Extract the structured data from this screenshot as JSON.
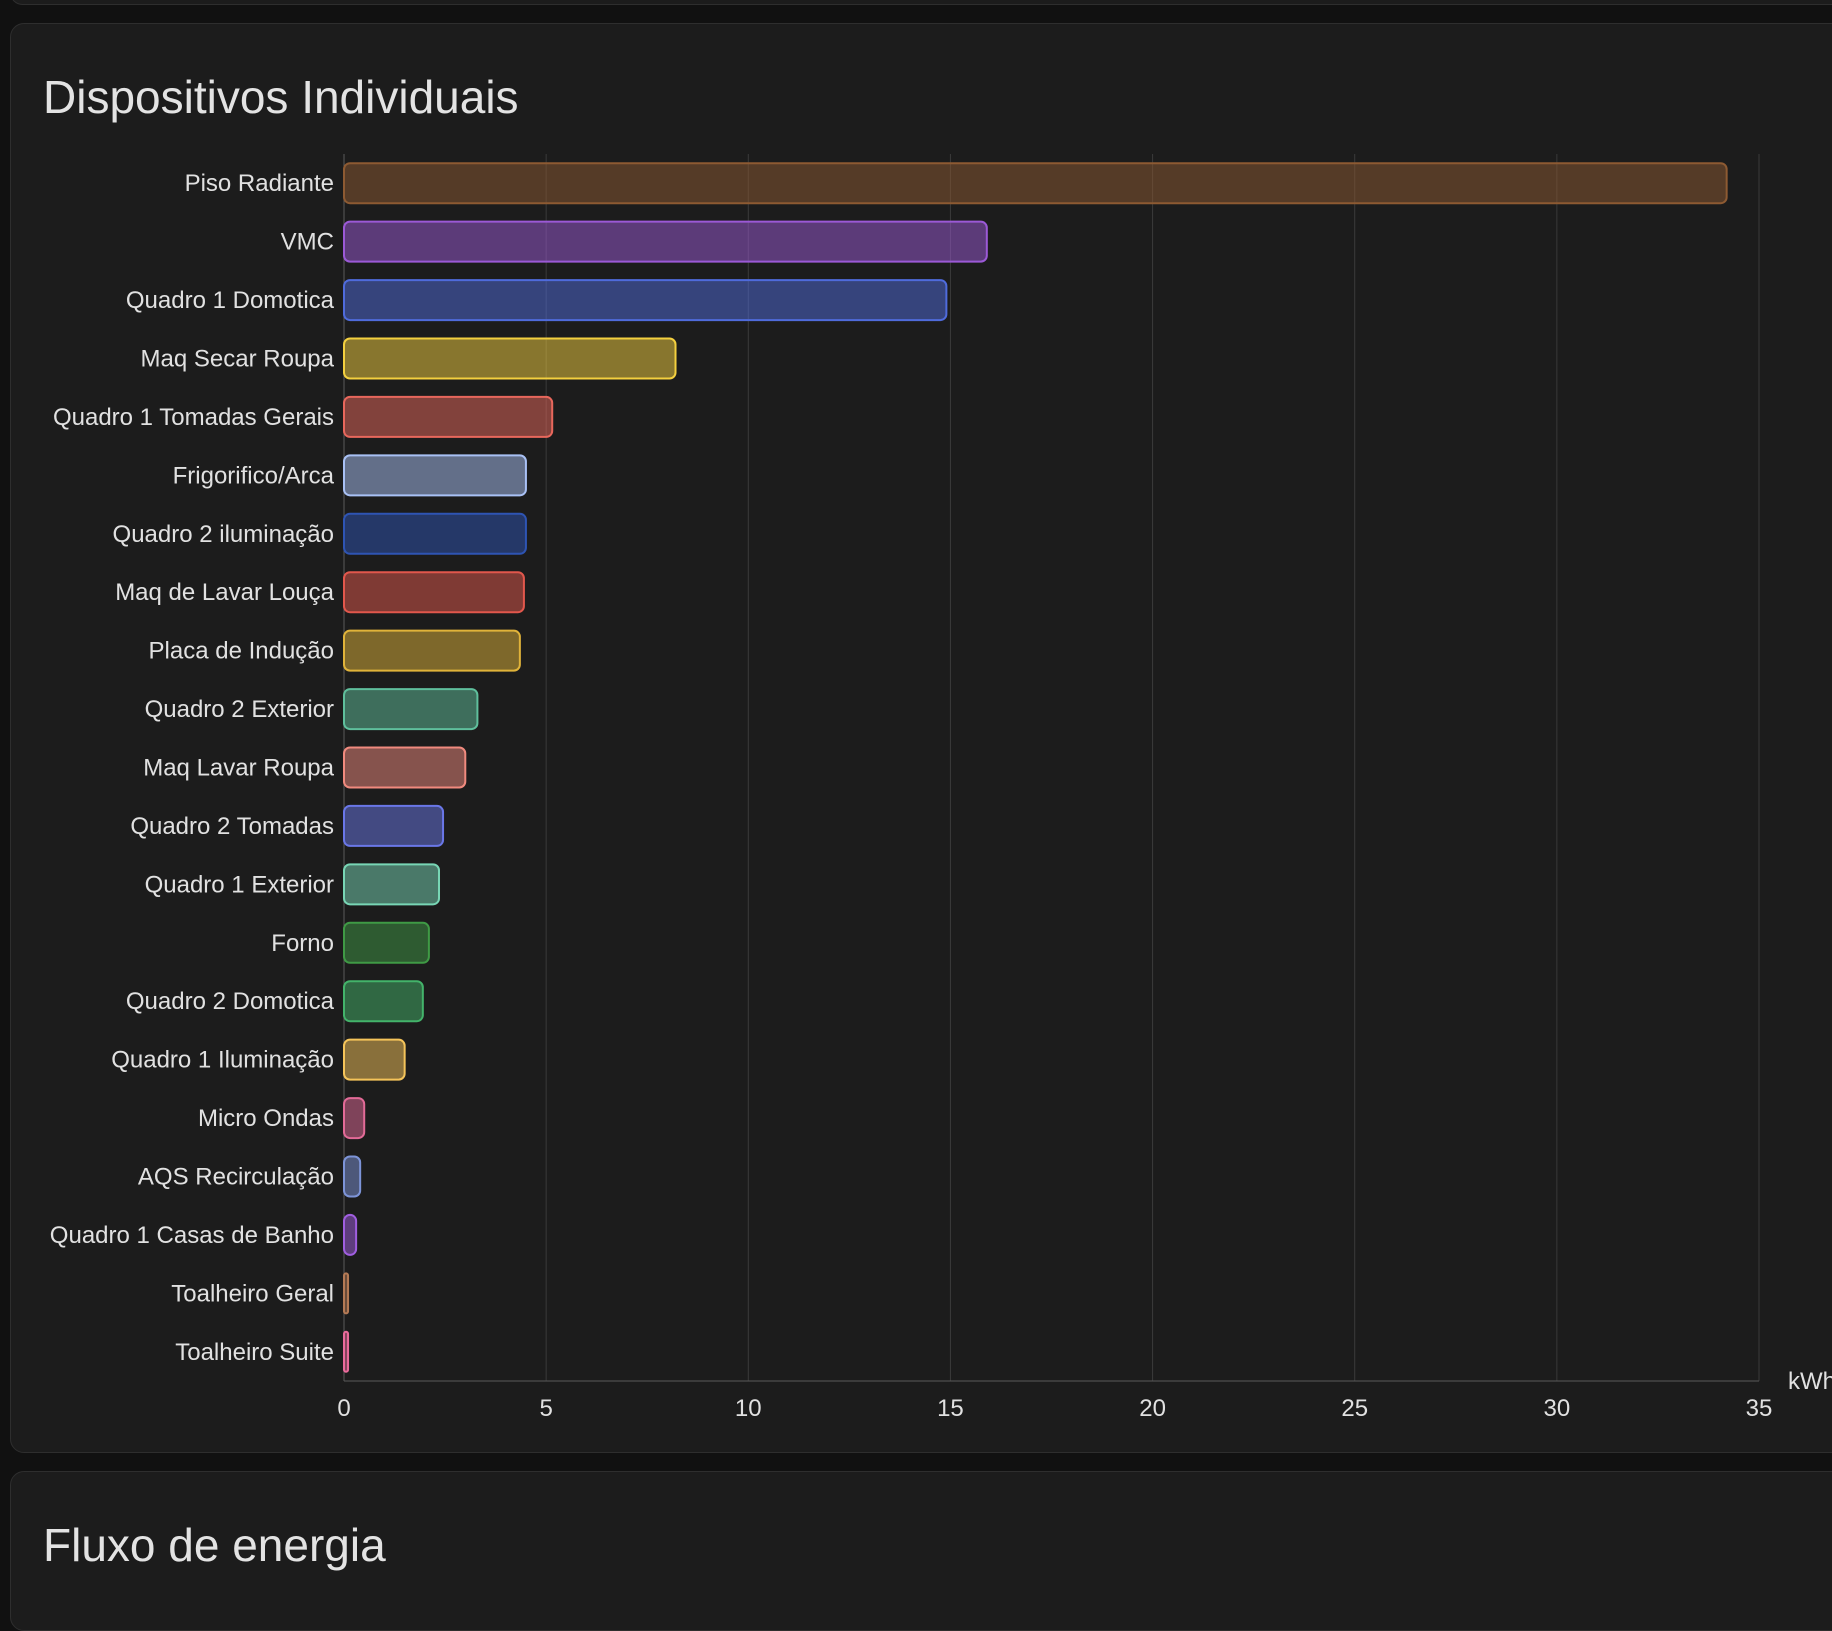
{
  "cards": {
    "devices": {
      "title": "Dispositivos Individuais"
    },
    "energy_flow": {
      "title": "Fluxo de energia"
    }
  },
  "chart_data": {
    "type": "bar",
    "orientation": "horizontal",
    "unit": "kWh",
    "xlim": [
      0,
      35
    ],
    "x_ticks": [
      0,
      5,
      10,
      15,
      20,
      25,
      30,
      35
    ],
    "grid": true,
    "categories": [
      "Piso Radiante",
      "VMC",
      "Quadro 1 Domotica",
      "Maq Secar Roupa",
      "Quadro 1 Tomadas Gerais",
      "Frigorifico/Arca",
      "Quadro 2 iluminação",
      "Maq de Lavar Louça",
      "Placa de Indução",
      "Quadro 2 Exterior",
      "Maq Lavar Roupa",
      "Quadro 2 Tomadas",
      "Quadro 1 Exterior",
      "Forno",
      "Quadro 2 Domotica",
      "Quadro 1 Iluminação",
      "Micro Ondas",
      "AQS Recirculação",
      "Quadro 1 Casas de Banho",
      "Toalheiro Geral",
      "Toalheiro Suite"
    ],
    "values": [
      34.2,
      15.9,
      14.9,
      8.2,
      5.15,
      4.5,
      4.5,
      4.45,
      4.35,
      3.3,
      3.0,
      2.45,
      2.35,
      2.1,
      1.95,
      1.5,
      0.5,
      0.4,
      0.3,
      0.1,
      0.1
    ],
    "colors": [
      "#8d5a32",
      "#9b59d6",
      "#4f6bdc",
      "#f4d03f",
      "#e8675c",
      "#a9c1f5",
      "#2e54b3",
      "#e2574c",
      "#e0b33a",
      "#5fbf9c",
      "#f08a7e",
      "#6a77e8",
      "#78d6b5",
      "#3f9a45",
      "#43b36a",
      "#f5c45a",
      "#e26a97",
      "#7d94d8",
      "#a05ee0",
      "#b47a55",
      "#ea6a9b"
    ]
  }
}
